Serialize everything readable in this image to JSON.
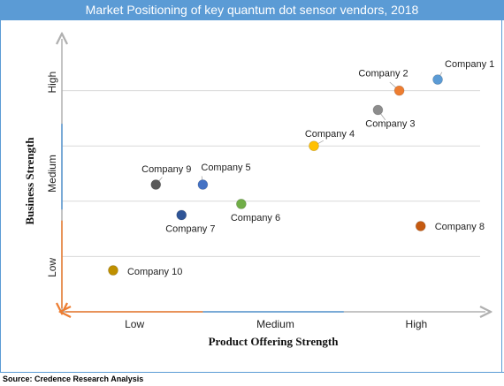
{
  "title": "Market Positioning of key quantum dot sensor vendors, 2018",
  "source": "Source: Credence Research Analysis",
  "chart_data": {
    "type": "scatter",
    "title": "Market Positioning of key quantum dot sensor vendors, 2018",
    "xlabel": "Product Offering Strength",
    "ylabel": "Business Strength",
    "xlim": [
      0,
      10
    ],
    "ylim": [
      0,
      10
    ],
    "x_tick_labels": [
      "Low",
      "Medium",
      "High"
    ],
    "y_tick_labels": [
      "Low",
      "Medium",
      "High"
    ],
    "grid": "horizontal",
    "points": [
      {
        "name": "Company 1",
        "x": 8.8,
        "y": 8.4,
        "color": "#5b9bd5"
      },
      {
        "name": "Company 2",
        "x": 7.9,
        "y": 8.0,
        "color": "#ed7d31"
      },
      {
        "name": "Company 3",
        "x": 7.4,
        "y": 7.3,
        "color": "#8c8c8c"
      },
      {
        "name": "Company 4",
        "x": 5.9,
        "y": 6.0,
        "color": "#ffc000"
      },
      {
        "name": "Company 5",
        "x": 3.3,
        "y": 4.6,
        "color": "#4472c4"
      },
      {
        "name": "Company 6",
        "x": 4.2,
        "y": 3.9,
        "color": "#70ad47"
      },
      {
        "name": "Company 7",
        "x": 2.8,
        "y": 3.5,
        "color": "#2f5597"
      },
      {
        "name": "Company 8",
        "x": 8.4,
        "y": 3.1,
        "color": "#c55a11"
      },
      {
        "name": "Company 9",
        "x": 2.2,
        "y": 4.6,
        "color": "#595959"
      },
      {
        "name": "Company 10",
        "x": 1.2,
        "y": 1.5,
        "color": "#bf9000"
      }
    ]
  }
}
